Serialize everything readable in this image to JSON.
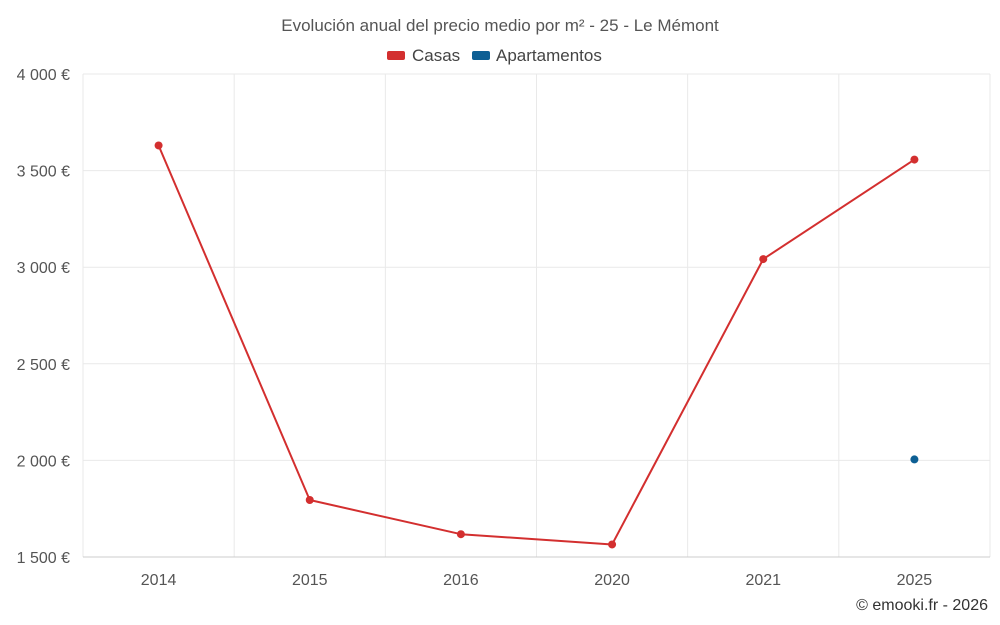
{
  "chart_data": {
    "type": "line",
    "title": "Evolución anual del precio medio por m² - 25 - Le Mémont",
    "categories": [
      "2014",
      "2015",
      "2016",
      "2020",
      "2021",
      "2025"
    ],
    "ylim": [
      1500,
      4000
    ],
    "y_ticks": [
      1500,
      2000,
      2500,
      3000,
      3500,
      4000
    ],
    "y_tick_labels": [
      "1 500 €",
      "2 000 €",
      "2 500 €",
      "3 000 €",
      "3 500 €",
      "4 000 €"
    ],
    "grid": true,
    "legend_position": "top-center",
    "series": [
      {
        "name": "Casas",
        "color": "#d32f2f",
        "values": [
          3630,
          1795,
          1618,
          1565,
          3042,
          3557
        ]
      },
      {
        "name": "Apartamentos",
        "color": "#0d5f94",
        "values": [
          null,
          null,
          null,
          null,
          null,
          2005
        ]
      }
    ]
  },
  "credit": "© emooki.fr - 2026"
}
